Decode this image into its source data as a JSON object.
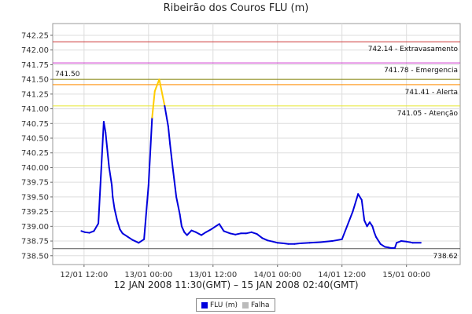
{
  "chart_data": {
    "type": "line",
    "title": "Ribeirão dos Couros FLU (m)",
    "subtitle": "12 JAN 2008 11:30(GMT) – 15 JAN 2008 02:40(GMT)",
    "xlabel": "",
    "ylabel": "",
    "ylim": [
      738.35,
      742.45
    ],
    "xlim": [
      "2008-01-12 06:10",
      "2008-01-15 10:00"
    ],
    "grid": true,
    "legend_position": "bottom",
    "y_ticks": [
      "742.25",
      "742.00",
      "741.75",
      "741.50",
      "741.25",
      "741.00",
      "740.75",
      "740.50",
      "740.25",
      "740.00",
      "739.75",
      "739.50",
      "739.25",
      "739.00",
      "738.75",
      "738.50"
    ],
    "x_ticks": [
      {
        "label": "12/01 12:00",
        "x": "2008-01-12 12:00"
      },
      {
        "label": "13/01 00:00",
        "x": "2008-01-13 00:00"
      },
      {
        "label": "13/01 12:00",
        "x": "2008-01-13 12:00"
      },
      {
        "label": "14/01 00:00",
        "x": "2008-01-14 00:00"
      },
      {
        "label": "14/01 12:00",
        "x": "2008-01-14 12:00"
      },
      {
        "label": "15/01 00:00",
        "x": "2008-01-15 00:00"
      }
    ],
    "thresholds": [
      {
        "label": "742.14 - Extravasamento",
        "value": 742.14,
        "color": "#cc3333"
      },
      {
        "label": "741.78 - Emergencia",
        "value": 741.78,
        "color": "#cc33cc"
      },
      {
        "label": "741.41 - Alerta",
        "value": 741.41,
        "color": "#ff8c00"
      },
      {
        "label": "741.05 - Atenção",
        "value": 741.05,
        "color": "#e8e830"
      }
    ],
    "annotations": [
      {
        "label": "741.50",
        "value": 741.5,
        "color": "#808000"
      },
      {
        "label": "738.62",
        "value": 738.62,
        "color": "#555555"
      }
    ],
    "series": [
      {
        "name": "FLU (m)",
        "color": "#0000dd",
        "alert_color": "#ffcc00",
        "x": [
          "2008-01-12 11:30",
          "2008-01-12 12:10",
          "2008-01-12 13:00",
          "2008-01-12 13:50",
          "2008-01-12 14:40",
          "2008-01-12 15:40",
          "2008-01-12 16:00",
          "2008-01-12 16:40",
          "2008-01-12 17:10",
          "2008-01-12 17:20",
          "2008-01-12 17:40",
          "2008-01-12 18:10",
          "2008-01-12 18:40",
          "2008-01-12 19:10",
          "2008-01-12 20:10",
          "2008-01-12 21:00",
          "2008-01-12 22:10",
          "2008-01-12 23:10",
          "2008-01-13 00:00",
          "2008-01-13 00:40",
          "2008-01-13 01:10",
          "2008-01-13 02:00",
          "2008-01-13 03:00",
          "2008-01-13 03:40",
          "2008-01-13 04:00",
          "2008-01-13 04:30",
          "2008-01-13 05:10",
          "2008-01-13 05:50",
          "2008-01-13 06:10",
          "2008-01-13 06:40",
          "2008-01-13 07:10",
          "2008-01-13 08:00",
          "2008-01-13 08:50",
          "2008-01-13 09:50",
          "2008-01-13 10:40",
          "2008-01-13 11:40",
          "2008-01-13 12:30",
          "2008-01-13 13:10",
          "2008-01-13 14:00",
          "2008-01-13 15:10",
          "2008-01-13 16:10",
          "2008-01-13 16:40",
          "2008-01-13 17:10",
          "2008-01-13 18:10",
          "2008-01-13 19:10",
          "2008-01-13 20:10",
          "2008-01-13 21:10",
          "2008-01-13 22:10",
          "2008-01-13 23:10",
          "2008-01-14 00:00",
          "2008-01-14 01:10",
          "2008-01-14 02:00",
          "2008-01-14 03:10",
          "2008-01-14 04:10",
          "2008-01-14 06:00",
          "2008-01-14 08:00",
          "2008-01-14 10:10",
          "2008-01-14 12:00",
          "2008-01-14 14:00",
          "2008-01-14 15:00",
          "2008-01-14 15:40",
          "2008-01-14 16:10",
          "2008-01-14 16:40",
          "2008-01-14 17:10",
          "2008-01-14 17:40",
          "2008-01-14 18:00",
          "2008-01-14 18:20",
          "2008-01-14 19:10",
          "2008-01-14 20:00",
          "2008-01-14 20:40",
          "2008-01-14 21:10",
          "2008-01-14 21:50",
          "2008-01-14 22:10",
          "2008-01-14 23:00",
          "2008-01-15 00:00",
          "2008-01-15 00:40",
          "2008-01-15 01:10",
          "2008-01-15 02:40"
        ],
        "values": [
          738.92,
          738.9,
          738.89,
          738.92,
          739.05,
          740.78,
          740.6,
          740.0,
          739.7,
          739.5,
          739.3,
          739.1,
          738.95,
          738.88,
          738.82,
          738.77,
          738.72,
          738.78,
          739.7,
          740.85,
          741.3,
          741.5,
          741.05,
          740.7,
          740.4,
          740.0,
          739.5,
          739.2,
          739.0,
          738.9,
          738.85,
          738.93,
          738.9,
          738.85,
          738.9,
          738.95,
          739.0,
          739.04,
          738.92,
          738.88,
          738.86,
          738.87,
          738.88,
          738.88,
          738.9,
          738.87,
          738.8,
          738.76,
          738.74,
          738.72,
          738.71,
          738.7,
          738.7,
          738.71,
          738.72,
          738.73,
          738.75,
          738.78,
          739.25,
          739.55,
          739.45,
          739.1,
          739.0,
          739.07,
          739.0,
          738.9,
          738.82,
          738.7,
          738.65,
          738.64,
          738.63,
          738.63,
          738.72,
          738.75,
          738.74,
          738.73,
          738.72,
          738.72
        ]
      }
    ],
    "legend": [
      {
        "label": "FLU (m)",
        "color": "#0000dd"
      },
      {
        "label": "Falha",
        "color": "#bbbbbb"
      }
    ]
  }
}
